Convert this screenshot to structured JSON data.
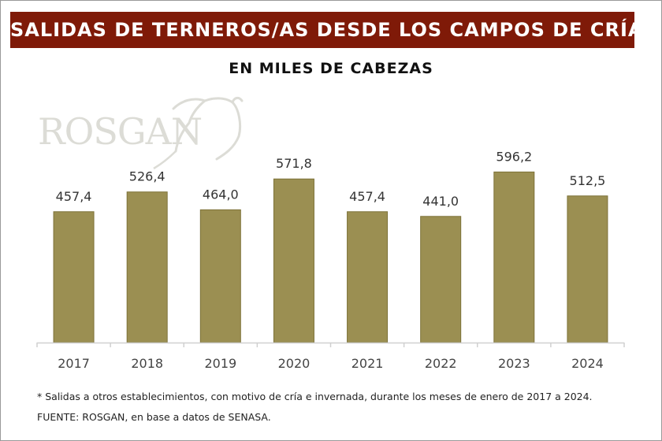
{
  "header": {
    "title": "SALIDAS DE TERNEROS/AS DESDE LOS CAMPOS DE CRÍA",
    "subtitle": "EN MILES DE CABEZAS",
    "title_bg": "#7f1a08"
  },
  "watermark": {
    "text": "ROSGAN",
    "icon": "bull-head-icon"
  },
  "chart_data": {
    "type": "bar",
    "title": "SALIDAS DE TERNEROS/AS DESDE LOS CAMPOS DE CRÍA",
    "subtitle": "EN MILES DE CABEZAS",
    "xlabel": "",
    "ylabel": "",
    "categories": [
      "2017",
      "2018",
      "2019",
      "2020",
      "2021",
      "2022",
      "2023",
      "2024"
    ],
    "values": [
      457.4,
      526.4,
      464.0,
      571.8,
      457.4,
      441.0,
      596.2,
      512.5
    ],
    "data_labels": [
      "457,4",
      "526,4",
      "464,0",
      "571,8",
      "457,4",
      "441,0",
      "596,2",
      "512,5"
    ],
    "ylim": [
      0,
      600
    ],
    "grid": false,
    "legend": "none",
    "bar_color": "#9b8f52"
  },
  "footer": {
    "footnote": "* Salidas a otros establecimientos, con motivo de cría e invernada, durante los meses de enero de 2017 a 2024.",
    "source": "FUENTE: ROSGAN, en base a datos de SENASA."
  }
}
